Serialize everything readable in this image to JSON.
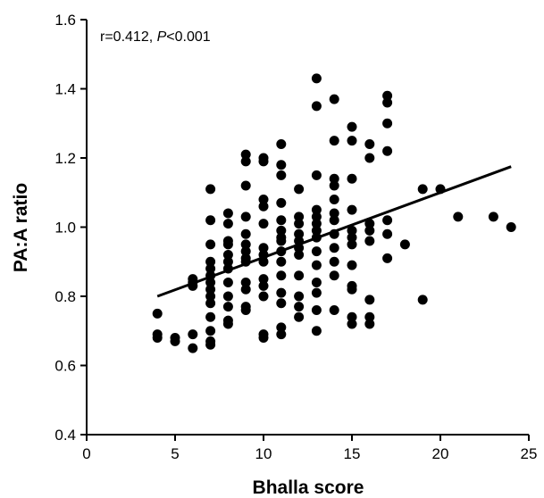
{
  "chart_data": {
    "type": "scatter",
    "title": "",
    "xlabel": "Bhalla score",
    "ylabel": "PA:A ratio",
    "xlim": [
      0,
      25
    ],
    "ylim": [
      0.4,
      1.6
    ],
    "x_ticks": [
      "0",
      "5",
      "10",
      "15",
      "20",
      "25"
    ],
    "y_ticks": [
      "0.4",
      "0.6",
      "0.8",
      "1.0",
      "1.2",
      "1.4",
      "1.6"
    ],
    "grid": false,
    "annotation": {
      "prefix": "r=0.412, ",
      "p_symbol": "P",
      "suffix": "<0.001"
    },
    "regression_line": {
      "x": [
        4,
        24
      ],
      "y": [
        0.8,
        1.175
      ]
    },
    "marker_color": "#000000",
    "points": [
      [
        4,
        0.75
      ],
      [
        4,
        0.69
      ],
      [
        4,
        0.68
      ],
      [
        5,
        0.68
      ],
      [
        5,
        0.67
      ],
      [
        6,
        0.85
      ],
      [
        6,
        0.84
      ],
      [
        6,
        0.83
      ],
      [
        6,
        0.69
      ],
      [
        6,
        0.65
      ],
      [
        7,
        1.11
      ],
      [
        7,
        1.02
      ],
      [
        7,
        0.95
      ],
      [
        7,
        0.9
      ],
      [
        7,
        0.88
      ],
      [
        7,
        0.86
      ],
      [
        7,
        0.84
      ],
      [
        7,
        0.82
      ],
      [
        7,
        0.8
      ],
      [
        7,
        0.78
      ],
      [
        7,
        0.74
      ],
      [
        7,
        0.7
      ],
      [
        7,
        0.67
      ],
      [
        7,
        0.66
      ],
      [
        8,
        1.04
      ],
      [
        8,
        1.01
      ],
      [
        8,
        0.96
      ],
      [
        8,
        0.95
      ],
      [
        8,
        0.92
      ],
      [
        8,
        0.9
      ],
      [
        8,
        0.88
      ],
      [
        8,
        0.84
      ],
      [
        8,
        0.8
      ],
      [
        8,
        0.77
      ],
      [
        8,
        0.73
      ],
      [
        8,
        0.72
      ],
      [
        9,
        1.21
      ],
      [
        9,
        1.19
      ],
      [
        9,
        1.12
      ],
      [
        9,
        1.03
      ],
      [
        9,
        0.98
      ],
      [
        9,
        0.95
      ],
      [
        9,
        0.93
      ],
      [
        9,
        0.91
      ],
      [
        9,
        0.9
      ],
      [
        9,
        0.84
      ],
      [
        9,
        0.82
      ],
      [
        9,
        0.77
      ],
      [
        9,
        0.76
      ],
      [
        10,
        1.2
      ],
      [
        10,
        1.19
      ],
      [
        10,
        1.08
      ],
      [
        10,
        1.06
      ],
      [
        10,
        1.01
      ],
      [
        10,
        0.94
      ],
      [
        10,
        0.92
      ],
      [
        10,
        0.9
      ],
      [
        10,
        0.85
      ],
      [
        10,
        0.83
      ],
      [
        10,
        0.8
      ],
      [
        10,
        0.69
      ],
      [
        10,
        0.68
      ],
      [
        11,
        1.24
      ],
      [
        11,
        1.18
      ],
      [
        11,
        1.15
      ],
      [
        11,
        1.07
      ],
      [
        11,
        1.02
      ],
      [
        11,
        0.99
      ],
      [
        11,
        0.97
      ],
      [
        11,
        0.96
      ],
      [
        11,
        0.93
      ],
      [
        11,
        0.9
      ],
      [
        11,
        0.86
      ],
      [
        11,
        0.81
      ],
      [
        11,
        0.78
      ],
      [
        11,
        0.71
      ],
      [
        11,
        0.69
      ],
      [
        12,
        1.11
      ],
      [
        12,
        1.03
      ],
      [
        12,
        1.01
      ],
      [
        12,
        0.98
      ],
      [
        12,
        0.96
      ],
      [
        12,
        0.94
      ],
      [
        12,
        0.92
      ],
      [
        12,
        0.86
      ],
      [
        12,
        0.8
      ],
      [
        12,
        0.77
      ],
      [
        12,
        0.74
      ],
      [
        13,
        1.43
      ],
      [
        13,
        1.35
      ],
      [
        13,
        1.15
      ],
      [
        13,
        1.05
      ],
      [
        13,
        1.03
      ],
      [
        13,
        1.01
      ],
      [
        13,
        0.99
      ],
      [
        13,
        0.97
      ],
      [
        13,
        0.93
      ],
      [
        13,
        0.89
      ],
      [
        13,
        0.84
      ],
      [
        13,
        0.81
      ],
      [
        13,
        0.76
      ],
      [
        13,
        0.7
      ],
      [
        14,
        1.37
      ],
      [
        14,
        1.25
      ],
      [
        14,
        1.14
      ],
      [
        14,
        1.12
      ],
      [
        14,
        1.08
      ],
      [
        14,
        1.04
      ],
      [
        14,
        1.02
      ],
      [
        14,
        0.98
      ],
      [
        14,
        0.94
      ],
      [
        14,
        0.9
      ],
      [
        14,
        0.86
      ],
      [
        14,
        0.76
      ],
      [
        15,
        1.29
      ],
      [
        15,
        1.25
      ],
      [
        15,
        1.14
      ],
      [
        15,
        1.05
      ],
      [
        15,
        0.99
      ],
      [
        15,
        0.97
      ],
      [
        15,
        0.95
      ],
      [
        15,
        0.89
      ],
      [
        15,
        0.83
      ],
      [
        15,
        0.82
      ],
      [
        15,
        0.74
      ],
      [
        15,
        0.72
      ],
      [
        16,
        1.24
      ],
      [
        16,
        1.2
      ],
      [
        16,
        1.01
      ],
      [
        16,
        0.99
      ],
      [
        16,
        0.96
      ],
      [
        16,
        0.79
      ],
      [
        16,
        0.74
      ],
      [
        16,
        0.72
      ],
      [
        17,
        1.38
      ],
      [
        17,
        1.36
      ],
      [
        17,
        1.3
      ],
      [
        17,
        1.22
      ],
      [
        17,
        1.02
      ],
      [
        17,
        0.98
      ],
      [
        17,
        0.91
      ],
      [
        18,
        0.95
      ],
      [
        19,
        1.11
      ],
      [
        19,
        0.79
      ],
      [
        20,
        1.11
      ],
      [
        21,
        1.03
      ],
      [
        23,
        1.03
      ],
      [
        24,
        1.0
      ]
    ]
  }
}
